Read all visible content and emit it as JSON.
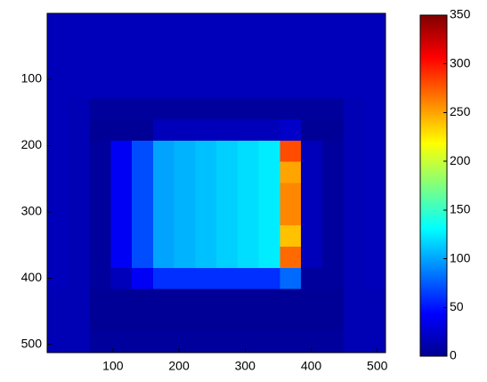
{
  "chart_data": {
    "type": "heatmap",
    "colormap": "jet",
    "y_reversed": true,
    "xlim": [
      0.5,
      512.5
    ],
    "ylim": [
      0.5,
      512.5
    ],
    "xticks": [
      100,
      200,
      300,
      400,
      500
    ],
    "yticks": [
      100,
      200,
      300,
      400,
      500
    ],
    "clim": [
      0,
      350
    ],
    "cticks": [
      0,
      50,
      100,
      150,
      200,
      250,
      300,
      350
    ],
    "z": [
      [
        20,
        20,
        20,
        20,
        20,
        20,
        20,
        20,
        20,
        20,
        20,
        20,
        20,
        20,
        20,
        20
      ],
      [
        20,
        20,
        20,
        20,
        20,
        20,
        20,
        20,
        20,
        20,
        20,
        20,
        20,
        20,
        20,
        20
      ],
      [
        20,
        20,
        20,
        20,
        20,
        20,
        20,
        20,
        20,
        20,
        20,
        20,
        20,
        20,
        20,
        20
      ],
      [
        20,
        20,
        20,
        20,
        20,
        20,
        20,
        20,
        20,
        20,
        20,
        20,
        20,
        20,
        20,
        20
      ],
      [
        20,
        18,
        10,
        10,
        10,
        10,
        10,
        10,
        10,
        10,
        10,
        10,
        10,
        10,
        18,
        20
      ],
      [
        20,
        18,
        8,
        8,
        8,
        20,
        20,
        20,
        20,
        20,
        20,
        25,
        8,
        8,
        18,
        20
      ],
      [
        20,
        18,
        10,
        40,
        70,
        100,
        105,
        110,
        115,
        120,
        125,
        280,
        20,
        10,
        18,
        20
      ],
      [
        20,
        18,
        10,
        40,
        70,
        100,
        105,
        110,
        115,
        120,
        125,
        250,
        20,
        10,
        18,
        20
      ],
      [
        20,
        18,
        10,
        40,
        70,
        100,
        105,
        110,
        115,
        120,
        125,
        260,
        20,
        10,
        18,
        20
      ],
      [
        20,
        18,
        10,
        40,
        70,
        100,
        105,
        110,
        115,
        120,
        125,
        260,
        20,
        10,
        18,
        20
      ],
      [
        20,
        18,
        10,
        40,
        70,
        100,
        105,
        110,
        115,
        120,
        125,
        240,
        20,
        10,
        18,
        20
      ],
      [
        20,
        18,
        10,
        40,
        70,
        100,
        105,
        110,
        115,
        120,
        125,
        270,
        20,
        10,
        18,
        20
      ],
      [
        20,
        18,
        10,
        20,
        40,
        60,
        60,
        60,
        60,
        60,
        60,
        80,
        10,
        10,
        18,
        20
      ],
      [
        18,
        18,
        8,
        8,
        8,
        8,
        8,
        8,
        8,
        8,
        8,
        8,
        8,
        8,
        18,
        18
      ],
      [
        18,
        18,
        8,
        8,
        8,
        8,
        8,
        8,
        8,
        8,
        8,
        8,
        8,
        8,
        18,
        18
      ],
      [
        18,
        18,
        10,
        10,
        10,
        10,
        10,
        10,
        10,
        10,
        10,
        10,
        10,
        10,
        18,
        18
      ]
    ]
  }
}
